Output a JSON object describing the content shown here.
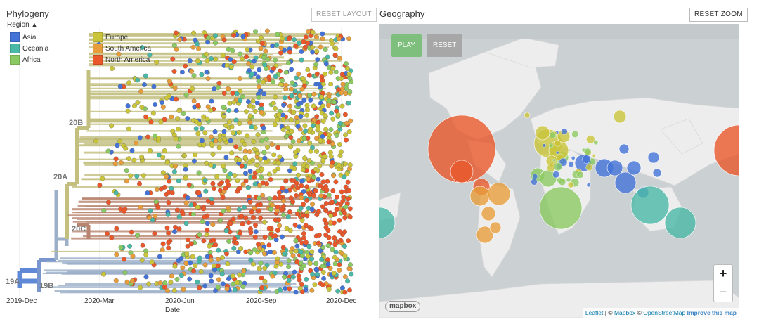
{
  "colors": {
    "asia": "#4473d8",
    "oceania": "#4ab8a6",
    "africa": "#8bc962",
    "europe": "#c9c43a",
    "south_america": "#e79d3b",
    "north_america": "#e9572a",
    "map_water": "#cbd0d3",
    "map_land": "#eeeeee",
    "play_green": "#7ebf7e",
    "reset_gray": "#a7a7a7"
  },
  "phylogeny": {
    "title": "Phylogeny",
    "reset_layout_label": "RESET LAYOUT",
    "legend": {
      "title": "Region",
      "toggle_icon": "chevron-up-icon",
      "items": [
        {
          "label": "Asia",
          "color": "#4473d8"
        },
        {
          "label": "Oceania",
          "color": "#4ab8a6"
        },
        {
          "label": "Africa",
          "color": "#8bc962"
        },
        {
          "label": "Europe",
          "color": "#c9c43a"
        },
        {
          "label": "South America",
          "color": "#e79d3b"
        },
        {
          "label": "North America",
          "color": "#e9572a"
        }
      ]
    },
    "clades": [
      "19A",
      "19B",
      "20A",
      "20B",
      "20C"
    ],
    "x_ticks": [
      "2019-Dec",
      "2020-Mar",
      "2020-Jun",
      "2020-Sep",
      "2020-Dec"
    ],
    "x_label": "Date"
  },
  "geography": {
    "title": "Geography",
    "reset_zoom_label": "RESET ZOOM",
    "play_label": "PLAY",
    "reset_label": "RESET",
    "zoom_in_label": "+",
    "zoom_out_label": "−",
    "mapbox_label": "mapbox",
    "attribution": {
      "leaflet": "Leaflet",
      "sep": " | © ",
      "mapbox": "Mapbox",
      "sep2": " © ",
      "osm": "OpenStreetMap",
      "improve": "Improve this map"
    }
  }
}
